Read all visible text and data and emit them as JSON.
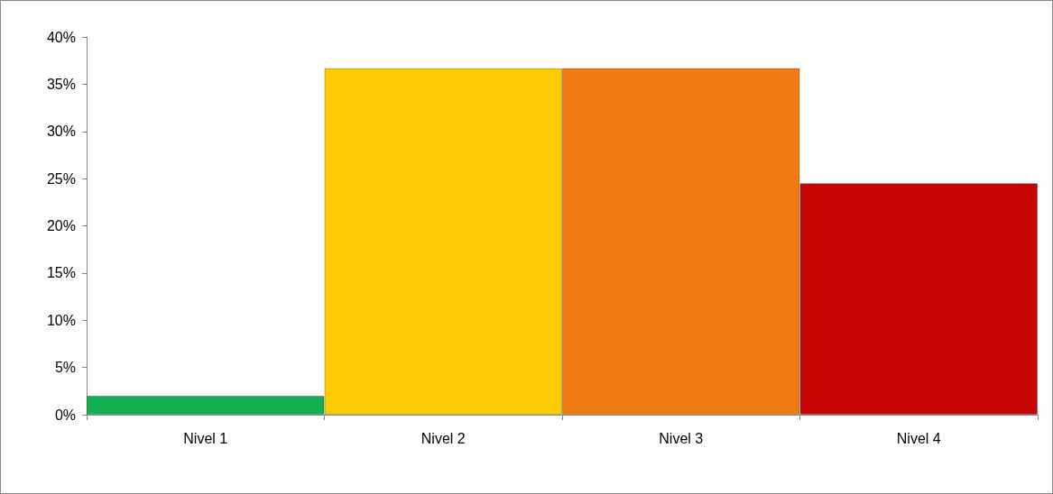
{
  "chart_data": {
    "type": "bar",
    "categories": [
      "Nivel 1",
      "Nivel 2",
      "Nivel 3",
      "Nivel 4"
    ],
    "values": [
      2.0,
      36.7,
      36.7,
      24.5
    ],
    "colors": [
      "#12b050",
      "#fdcb04",
      "#f17a12",
      "#c90606"
    ],
    "ylim": [
      0,
      40
    ],
    "yticks": [
      {
        "value": 0,
        "label": "0%"
      },
      {
        "value": 5,
        "label": "5%"
      },
      {
        "value": 10,
        "label": "10%"
      },
      {
        "value": 15,
        "label": "15%"
      },
      {
        "value": 20,
        "label": "20%"
      },
      {
        "value": 25,
        "label": "25%"
      },
      {
        "value": 30,
        "label": "30%"
      },
      {
        "value": 35,
        "label": "35%"
      },
      {
        "value": 40,
        "label": "40%"
      }
    ],
    "grid": false
  }
}
